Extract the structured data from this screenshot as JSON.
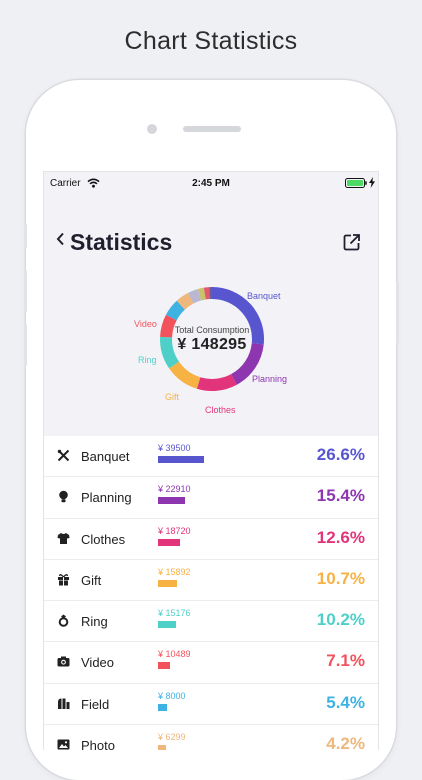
{
  "headline": "Chart Statistics",
  "status_bar": {
    "carrier": "Carrier",
    "time": "2:45 PM"
  },
  "nav": {
    "title": "Statistics",
    "back_icon": "chevron-left-icon",
    "share_icon": "share-icon"
  },
  "summary": {
    "label": "Total Consumption",
    "value": "¥ 148295"
  },
  "colors": {
    "banquet": "#5756cf",
    "planning": "#8e35b0",
    "clothes": "#e2347a",
    "gift": "#f6b243",
    "ring": "#4ed0c9",
    "video": "#f2525c",
    "field": "#3db2e3",
    "photo": "#eeb77c",
    "other1": "#b9b8d0",
    "other2": "#c9c36d",
    "other3": "#e15a6a",
    "other4": "#6e5b9e"
  },
  "chart_data": {
    "type": "pie",
    "donut": true,
    "total": 148295,
    "slices": [
      {
        "key": "banquet",
        "label": "Banquet",
        "value": 39500,
        "percent": 26.6
      },
      {
        "key": "planning",
        "label": "Planning",
        "value": 22910,
        "percent": 15.4
      },
      {
        "key": "clothes",
        "label": "Clothes",
        "value": 18720,
        "percent": 12.6
      },
      {
        "key": "gift",
        "label": "Gift",
        "value": 15892,
        "percent": 10.7
      },
      {
        "key": "ring",
        "label": "Ring",
        "value": 15176,
        "percent": 10.2
      },
      {
        "key": "video",
        "label": "Video",
        "value": 10489,
        "percent": 7.1
      },
      {
        "key": "field",
        "label": "Field",
        "value": 8000,
        "percent": 5.4
      },
      {
        "key": "photo",
        "label": "Photo",
        "value": 6299,
        "percent": 4.2
      },
      {
        "key": "other1",
        "label": "",
        "value": 4800
      },
      {
        "key": "other2",
        "label": "",
        "value": 2800
      },
      {
        "key": "other3",
        "label": "",
        "value": 2400
      },
      {
        "key": "other4",
        "label": "",
        "value": 1309
      }
    ]
  },
  "list": [
    {
      "key": "banquet",
      "name": "Banquet",
      "amount": "¥ 39500",
      "percent": "26.6%",
      "share": 0.266,
      "icon": "utensils-icon"
    },
    {
      "key": "planning",
      "name": "Planning",
      "amount": "¥ 22910",
      "percent": "15.4%",
      "share": 0.154,
      "icon": "lightbulb-icon"
    },
    {
      "key": "clothes",
      "name": "Clothes",
      "amount": "¥ 18720",
      "percent": "12.6%",
      "share": 0.126,
      "icon": "shirt-icon"
    },
    {
      "key": "gift",
      "name": "Gift",
      "amount": "¥ 15892",
      "percent": "10.7%",
      "share": 0.107,
      "icon": "gift-icon"
    },
    {
      "key": "ring",
      "name": "Ring",
      "amount": "¥ 15176",
      "percent": "10.2%",
      "share": 0.102,
      "icon": "ring-icon"
    },
    {
      "key": "video",
      "name": "Video",
      "amount": "¥ 10489",
      "percent": "7.1%",
      "share": 0.071,
      "icon": "camera-icon"
    },
    {
      "key": "field",
      "name": "Field",
      "amount": "¥ 8000",
      "percent": "5.4%",
      "share": 0.054,
      "icon": "venue-icon"
    },
    {
      "key": "photo",
      "name": "Photo",
      "amount": "¥ 6299",
      "percent": "4.2%",
      "share": 0.042,
      "icon": "image-icon"
    }
  ]
}
